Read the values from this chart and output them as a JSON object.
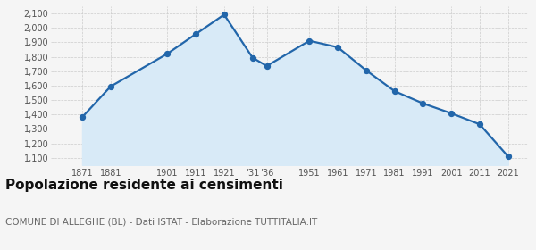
{
  "years": [
    1871,
    1881,
    1901,
    1911,
    1921,
    1931,
    1936,
    1951,
    1961,
    1971,
    1981,
    1991,
    2001,
    2011,
    2021
  ],
  "population": [
    1381,
    1594,
    1821,
    1957,
    2092,
    1794,
    1736,
    1911,
    1866,
    1706,
    1562,
    1477,
    1408,
    1332,
    1109
  ],
  "line_color": "#2266aa",
  "fill_color": "#d8eaf7",
  "marker_color": "#2266aa",
  "grid_color": "#cccccc",
  "bg_color": "#f5f5f5",
  "title": "Popolazione residente ai censimenti",
  "subtitle": "COMUNE DI ALLEGHE (BL) - Dati ISTAT - Elaborazione TUTTITALIA.IT",
  "ylim": [
    1050,
    2150
  ],
  "yticks": [
    1100,
    1200,
    1300,
    1400,
    1500,
    1600,
    1700,
    1800,
    1900,
    2000,
    2100
  ],
  "xlim": [
    1860,
    2028
  ],
  "xtick_positions": [
    1871,
    1881,
    1901,
    1911,
    1921,
    1931,
    1936,
    1951,
    1961,
    1971,
    1981,
    1991,
    2001,
    2011,
    2021
  ],
  "xtick_labels": [
    "1871",
    "1881",
    "1901",
    "1911",
    "1921",
    "’31",
    "’36",
    "1951",
    "1961",
    "1971",
    "1981",
    "1991",
    "2001",
    "2011",
    "2021"
  ],
  "title_fontsize": 11,
  "subtitle_fontsize": 7.5,
  "tick_fontsize": 7,
  "line_width": 1.6,
  "marker_size": 18
}
